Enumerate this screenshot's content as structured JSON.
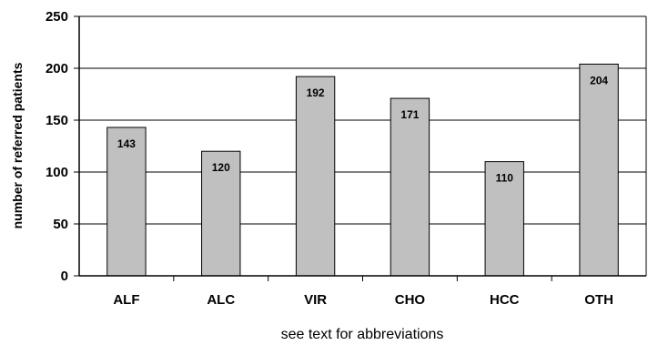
{
  "chart_data": {
    "type": "bar",
    "categories": [
      "ALF",
      "ALC",
      "VIR",
      "CHO",
      "HCC",
      "OTH"
    ],
    "values": [
      143,
      120,
      192,
      171,
      110,
      204
    ],
    "data_labels": [
      "143",
      "120",
      "192",
      "171",
      "110",
      "204"
    ],
    "title": "",
    "xlabel": "see text for abbreviations",
    "ylabel": "number of referred patients",
    "ylim": [
      0,
      250
    ],
    "yticks": [
      0,
      50,
      100,
      150,
      200,
      250
    ],
    "ytick_labels": [
      "0",
      "50",
      "100",
      "150",
      "200",
      "250"
    ],
    "grid": true,
    "legend": "none",
    "bar_color": "#c0c0c0",
    "bar_edge_color": "#000000",
    "grid_color": "#000000"
  }
}
